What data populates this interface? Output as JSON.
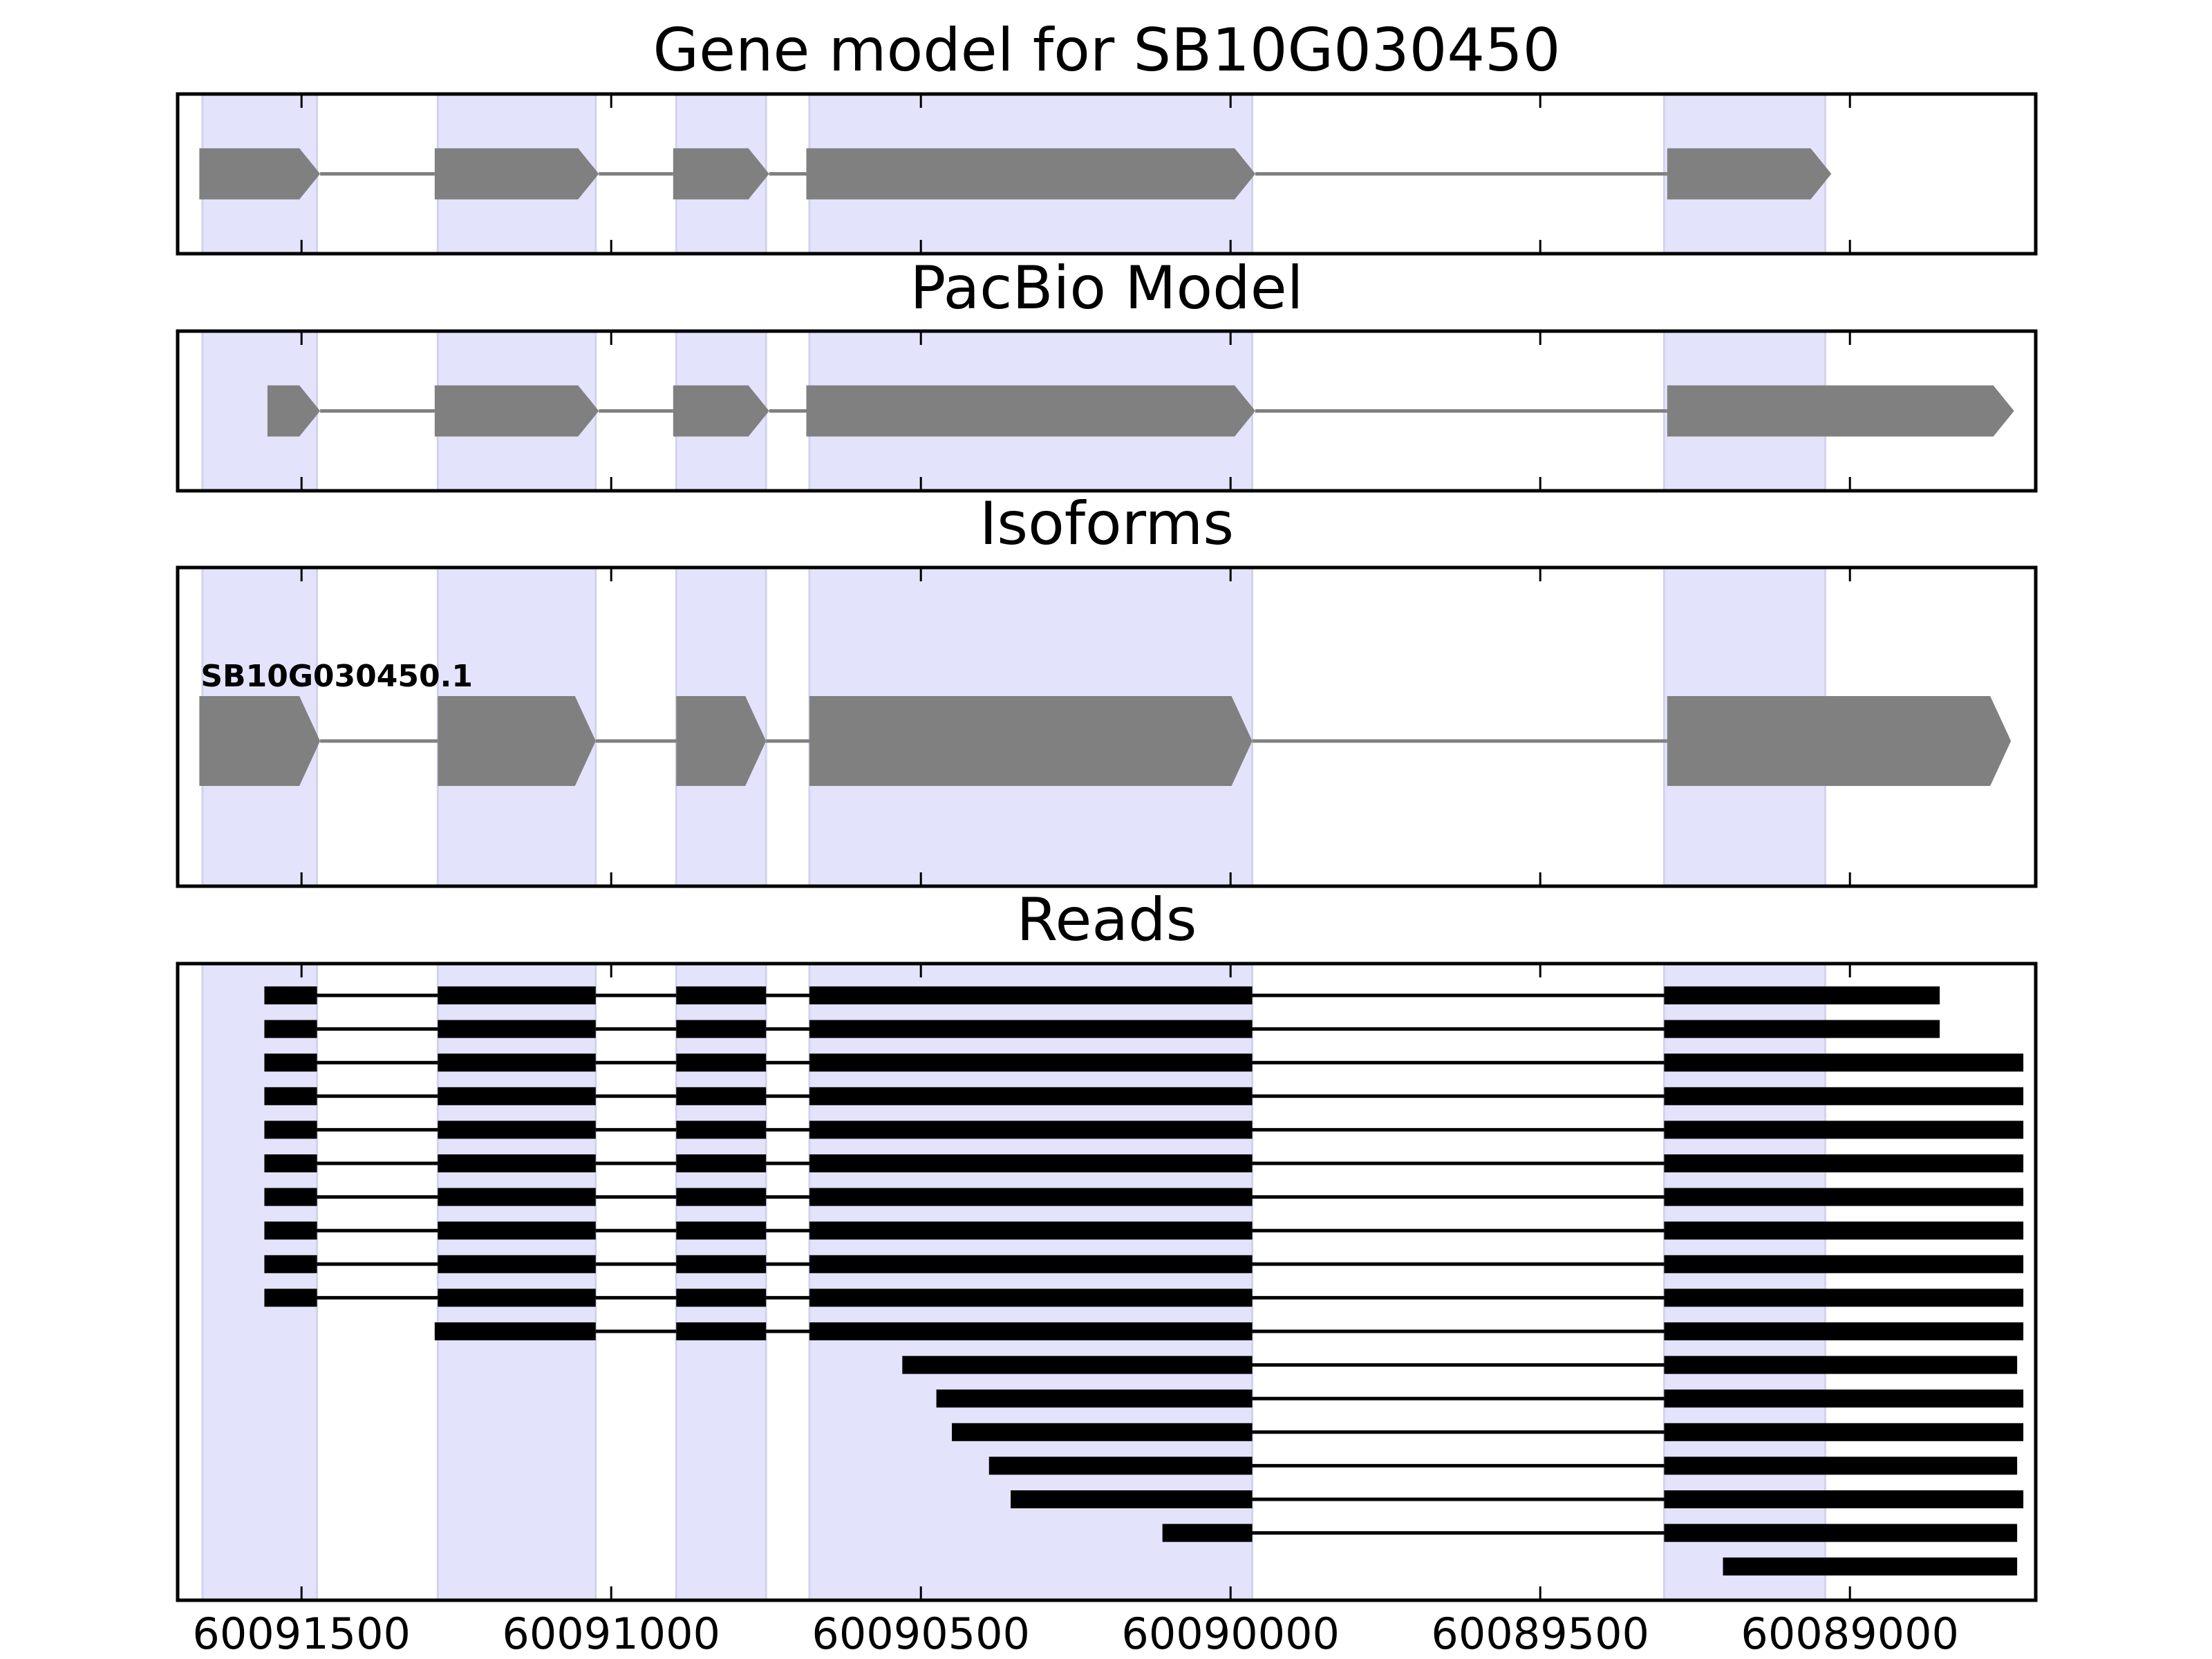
{
  "chart_data": {
    "type": "gene-track",
    "title": "Gene model for SB10G030450",
    "x_axis": {
      "reversed": true,
      "range": [
        60091700,
        60088700
      ],
      "ticks": [
        60091500,
        60091000,
        60090500,
        60090000,
        60089500,
        60089000
      ],
      "tick_labels": [
        "60091500",
        "60091000",
        "60090500",
        "60090000",
        "60089500",
        "60089000"
      ]
    },
    "exon_bands": [
      [
        60091660,
        60091475
      ],
      [
        60091280,
        60091025
      ],
      [
        60090895,
        60090750
      ],
      [
        60090680,
        60089965
      ],
      [
        60089300,
        60089040
      ]
    ],
    "band_color": "#e3e3fb",
    "feature_color": "#808080",
    "read_color": "#000000",
    "panels": [
      {
        "title": "Gene model for SB10G030450",
        "kind": "gene",
        "transcripts": [
          {
            "label": "",
            "exons": [
              [
                60091665,
                60091470
              ],
              [
                60091285,
                60091020
              ],
              [
                60090900,
                60090745
              ],
              [
                60090685,
                60089960
              ],
              [
                60089295,
                60089030
              ]
            ]
          }
        ]
      },
      {
        "title": "PacBio Model",
        "kind": "gene",
        "transcripts": [
          {
            "label": "",
            "exons": [
              [
                60091555,
                60091470
              ],
              [
                60091285,
                60091020
              ],
              [
                60090900,
                60090745
              ],
              [
                60090685,
                60089960
              ],
              [
                60089295,
                60088735
              ]
            ]
          }
        ]
      },
      {
        "title": "Isoforms",
        "kind": "isoforms",
        "transcripts": [
          {
            "label": "SB10G030450.1",
            "exons": [
              [
                60091665,
                60091470
              ],
              [
                60091280,
                60091025
              ],
              [
                60090895,
                60090750
              ],
              [
                60090680,
                60089965
              ],
              [
                60089295,
                60088740
              ]
            ]
          }
        ]
      },
      {
        "title": "Reads",
        "kind": "reads",
        "reads": [
          [
            [
              60091560,
              60091475
            ],
            [
              60091280,
              60091025
            ],
            [
              60090895,
              60090750
            ],
            [
              60090680,
              60089965
            ],
            [
              60089300,
              60088855
            ]
          ],
          [
            [
              60091560,
              60091475
            ],
            [
              60091280,
              60091025
            ],
            [
              60090895,
              60090750
            ],
            [
              60090680,
              60089965
            ],
            [
              60089300,
              60088855
            ]
          ],
          [
            [
              60091560,
              60091475
            ],
            [
              60091280,
              60091025
            ],
            [
              60090895,
              60090750
            ],
            [
              60090680,
              60089965
            ],
            [
              60089300,
              60088720
            ]
          ],
          [
            [
              60091560,
              60091475
            ],
            [
              60091280,
              60091025
            ],
            [
              60090895,
              60090750
            ],
            [
              60090680,
              60089965
            ],
            [
              60089300,
              60088720
            ]
          ],
          [
            [
              60091560,
              60091475
            ],
            [
              60091280,
              60091025
            ],
            [
              60090895,
              60090750
            ],
            [
              60090680,
              60089965
            ],
            [
              60089300,
              60088720
            ]
          ],
          [
            [
              60091560,
              60091475
            ],
            [
              60091280,
              60091025
            ],
            [
              60090895,
              60090750
            ],
            [
              60090680,
              60089965
            ],
            [
              60089300,
              60088720
            ]
          ],
          [
            [
              60091560,
              60091475
            ],
            [
              60091280,
              60091025
            ],
            [
              60090895,
              60090750
            ],
            [
              60090680,
              60089965
            ],
            [
              60089300,
              60088720
            ]
          ],
          [
            [
              60091560,
              60091475
            ],
            [
              60091280,
              60091025
            ],
            [
              60090895,
              60090750
            ],
            [
              60090680,
              60089965
            ],
            [
              60089300,
              60088720
            ]
          ],
          [
            [
              60091560,
              60091475
            ],
            [
              60091280,
              60091025
            ],
            [
              60090895,
              60090750
            ],
            [
              60090680,
              60089965
            ],
            [
              60089300,
              60088720
            ]
          ],
          [
            [
              60091560,
              60091475
            ],
            [
              60091280,
              60091025
            ],
            [
              60090895,
              60090750
            ],
            [
              60090680,
              60089965
            ],
            [
              60089300,
              60088720
            ]
          ],
          [
            [
              60091285,
              60091025
            ],
            [
              60090895,
              60090750
            ],
            [
              60090680,
              60089965
            ],
            [
              60089300,
              60088720
            ]
          ],
          [
            [
              60090530,
              60089965
            ],
            [
              60089300,
              60088730
            ]
          ],
          [
            [
              60090475,
              60089965
            ],
            [
              60089300,
              60088720
            ]
          ],
          [
            [
              60090450,
              60089965
            ],
            [
              60089300,
              60088720
            ]
          ],
          [
            [
              60090390,
              60089965
            ],
            [
              60089300,
              60088730
            ]
          ],
          [
            [
              60090355,
              60089965
            ],
            [
              60089300,
              60088720
            ]
          ],
          [
            [
              60090110,
              60089965
            ],
            [
              60089300,
              60088730
            ]
          ],
          [
            [
              60089205,
              60088730
            ]
          ]
        ]
      }
    ]
  }
}
